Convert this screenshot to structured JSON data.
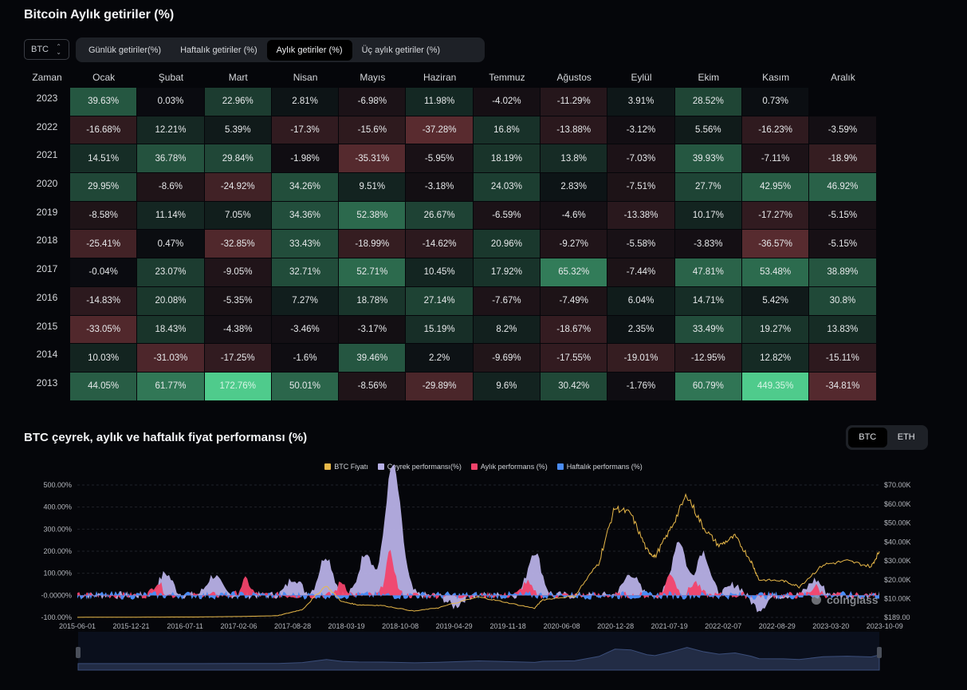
{
  "header": {
    "title": "Bitcoin Aylık getiriler (%)"
  },
  "coin_select": {
    "value": "BTC"
  },
  "period_tabs": [
    {
      "label": "Günlük getiriler(%)",
      "active": false
    },
    {
      "label": "Haftalık getiriler (%)",
      "active": false
    },
    {
      "label": "Aylık getiriler (%)",
      "active": true
    },
    {
      "label": "Üç aylık getiriler (%)",
      "active": false
    }
  ],
  "heatmap": {
    "year_header": "Zaman",
    "months": [
      "Ocak",
      "Şubat",
      "Mart",
      "Nisan",
      "Mayıs",
      "Haziran",
      "Temmuz",
      "Ağustos",
      "Eylül",
      "Ekim",
      "Kasım",
      "Aralık"
    ],
    "rows": [
      {
        "year": "2023",
        "values": [
          "39.63%",
          "0.03%",
          "22.96%",
          "2.81%",
          "-6.98%",
          "11.98%",
          "-4.02%",
          "-11.29%",
          "3.91%",
          "28.52%",
          "0.73%",
          ""
        ]
      },
      {
        "year": "2022",
        "values": [
          "-16.68%",
          "12.21%",
          "5.39%",
          "-17.3%",
          "-15.6%",
          "-37.28%",
          "16.8%",
          "-13.88%",
          "-3.12%",
          "5.56%",
          "-16.23%",
          "-3.59%"
        ]
      },
      {
        "year": "2021",
        "values": [
          "14.51%",
          "36.78%",
          "29.84%",
          "-1.98%",
          "-35.31%",
          "-5.95%",
          "18.19%",
          "13.8%",
          "-7.03%",
          "39.93%",
          "-7.11%",
          "-18.9%"
        ]
      },
      {
        "year": "2020",
        "values": [
          "29.95%",
          "-8.6%",
          "-24.92%",
          "34.26%",
          "9.51%",
          "-3.18%",
          "24.03%",
          "2.83%",
          "-7.51%",
          "27.7%",
          "42.95%",
          "46.92%"
        ]
      },
      {
        "year": "2019",
        "values": [
          "-8.58%",
          "11.14%",
          "7.05%",
          "34.36%",
          "52.38%",
          "26.67%",
          "-6.59%",
          "-4.6%",
          "-13.38%",
          "10.17%",
          "-17.27%",
          "-5.15%"
        ]
      },
      {
        "year": "2018",
        "values": [
          "-25.41%",
          "0.47%",
          "-32.85%",
          "33.43%",
          "-18.99%",
          "-14.62%",
          "20.96%",
          "-9.27%",
          "-5.58%",
          "-3.83%",
          "-36.57%",
          "-5.15%"
        ]
      },
      {
        "year": "2017",
        "values": [
          "-0.04%",
          "23.07%",
          "-9.05%",
          "32.71%",
          "52.71%",
          "10.45%",
          "17.92%",
          "65.32%",
          "-7.44%",
          "47.81%",
          "53.48%",
          "38.89%"
        ]
      },
      {
        "year": "2016",
        "values": [
          "-14.83%",
          "20.08%",
          "-5.35%",
          "7.27%",
          "18.78%",
          "27.14%",
          "-7.67%",
          "-7.49%",
          "6.04%",
          "14.71%",
          "5.42%",
          "30.8%"
        ]
      },
      {
        "year": "2015",
        "values": [
          "-33.05%",
          "18.43%",
          "-4.38%",
          "-3.46%",
          "-3.17%",
          "15.19%",
          "8.2%",
          "-18.67%",
          "2.35%",
          "33.49%",
          "19.27%",
          "13.83%"
        ]
      },
      {
        "year": "2014",
        "values": [
          "10.03%",
          "-31.03%",
          "-17.25%",
          "-1.6%",
          "39.46%",
          "2.2%",
          "-9.69%",
          "-17.55%",
          "-19.01%",
          "-12.95%",
          "12.82%",
          "-15.11%"
        ]
      },
      {
        "year": "2013",
        "values": [
          "44.05%",
          "61.77%",
          "172.76%",
          "50.01%",
          "-8.56%",
          "-29.89%",
          "9.6%",
          "30.42%",
          "-1.76%",
          "60.79%",
          "449.35%",
          "-34.81%"
        ]
      }
    ],
    "colors": {
      "positive": "#4fcb8c",
      "negative": "#5a2c30",
      "neutral": "#0a0b10"
    }
  },
  "performance": {
    "title": "BTC çeyrek, aylık ve haftalık fiyat performansı (%)",
    "coin_toggle": [
      {
        "label": "BTC",
        "active": true
      },
      {
        "label": "ETH",
        "active": false
      }
    ],
    "watermark": "coinglass"
  },
  "chart_data": [
    {
      "type": "heatmap",
      "title": "Bitcoin Aylık getiriler (%)",
      "note": "values mirrored in heatmap.rows"
    },
    {
      "type": "line",
      "title": "BTC çeyrek, aylık ve haftalık fiyat performansı (%)",
      "legend": [
        {
          "name": "BTC Fiyatı",
          "color": "#e9b949"
        },
        {
          "name": "Çeyrek performansı(%)",
          "color": "#b7b0e6"
        },
        {
          "name": "Aylık performans (%)",
          "color": "#f2436b"
        },
        {
          "name": "Haftalık performans (%)",
          "color": "#4a8cf5"
        }
      ],
      "legend_position": "top-center",
      "y_left": {
        "ticks": [
          "500.00%",
          "400.00%",
          "300.00%",
          "200.00%",
          "100.00%",
          "-0.0000%",
          "-100.00%"
        ],
        "range": [
          -100,
          500
        ]
      },
      "y_right": {
        "ticks": [
          "$70.00K",
          "$60.00K",
          "$50.00K",
          "$40.00K",
          "$30.00K",
          "$20.00K",
          "$10.00K",
          "$189.00"
        ],
        "range": [
          189,
          70000
        ]
      },
      "x_ticks": [
        "2015-06-01",
        "2015-12-21",
        "2016-07-11",
        "2017-02-06",
        "2017-08-28",
        "2018-03-19",
        "2018-10-08",
        "2019-04-29",
        "2019-11-18",
        "2020-06-08",
        "2020-12-28",
        "2021-07-19",
        "2022-02-07",
        "2022-08-29",
        "2023-03-20",
        "2023-10-09"
      ],
      "grid": true,
      "series": [
        {
          "name": "BTC Fiyatı",
          "axis": "right",
          "x": [
            0,
            0.15,
            0.2,
            0.25,
            0.28,
            0.31,
            0.33,
            0.35,
            0.38,
            0.42,
            0.45,
            0.5,
            0.53,
            0.57,
            0.58,
            0.62,
            0.65,
            0.67,
            0.69,
            0.71,
            0.72,
            0.74,
            0.76,
            0.78,
            0.8,
            0.82,
            0.84,
            0.85,
            0.88,
            0.9,
            0.93,
            0.96,
            0.99,
            1.0
          ],
          "values": [
            240,
            430,
            650,
            1100,
            4300,
            17000,
            8500,
            6800,
            6500,
            3500,
            5300,
            11000,
            8500,
            5000,
            9500,
            11500,
            29000,
            58000,
            55000,
            36000,
            32000,
            47000,
            65000,
            48000,
            38000,
            43000,
            30000,
            20000,
            19500,
            16500,
            28000,
            30000,
            27000,
            35000
          ]
        },
        {
          "name": "Çeyrek performansı(%)",
          "axis": "left",
          "peaks": [
            {
              "x": 0.11,
              "v": 100
            },
            {
              "x": 0.17,
              "v": 90
            },
            {
              "x": 0.27,
              "v": 80
            },
            {
              "x": 0.31,
              "v": 180
            },
            {
              "x": 0.36,
              "v": 200
            },
            {
              "x": 0.39,
              "v": 420
            },
            {
              "x": 0.4,
              "v": 270
            },
            {
              "x": 0.47,
              "v": -50
            },
            {
              "x": 0.57,
              "v": 200
            },
            {
              "x": 0.69,
              "v": 100
            },
            {
              "x": 0.75,
              "v": 250
            },
            {
              "x": 0.78,
              "v": 200
            },
            {
              "x": 0.82,
              "v": 50
            },
            {
              "x": 0.85,
              "v": -60
            },
            {
              "x": 0.92,
              "v": 70
            }
          ]
        },
        {
          "name": "Aylık performans (%)",
          "axis": "left",
          "peaks": [
            {
              "x": 0.1,
              "v": 60
            },
            {
              "x": 0.21,
              "v": 70
            },
            {
              "x": 0.33,
              "v": 60
            },
            {
              "x": 0.39,
              "v": 190
            },
            {
              "x": 0.56,
              "v": 60
            },
            {
              "x": 0.74,
              "v": 100
            },
            {
              "x": 0.77,
              "v": 60
            },
            {
              "x": 0.92,
              "v": 40
            }
          ]
        },
        {
          "name": "Haftalık performans (%)",
          "axis": "left",
          "range": [
            -30,
            40
          ]
        }
      ]
    }
  ]
}
